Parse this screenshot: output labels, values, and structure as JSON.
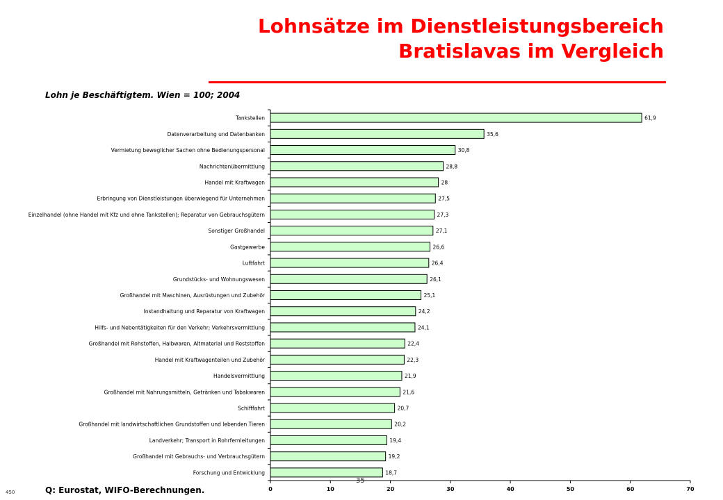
{
  "slide": {
    "title_line1": "Lohnsätze im Dienstleistungsbereich",
    "title_line2": "Bratislavas im Vergleich",
    "subtitle": "Lohn je Beschäftigtem. Wien = 100; 2004",
    "source": "Q: Eurostat, WIFO-Berechnungen.",
    "slide_number": "450",
    "page_number": "35"
  },
  "colors": {
    "title": "#ff0000",
    "bar_fill": "#ccffcc",
    "bar_stroke": "#000000"
  },
  "chart_data": {
    "type": "bar",
    "orientation": "horizontal",
    "title": "",
    "xlabel": "",
    "ylabel": "",
    "xlim": [
      0,
      70
    ],
    "x_ticks": [
      0,
      10,
      20,
      30,
      40,
      50,
      60,
      70
    ],
    "grid": false,
    "legend": "none",
    "categories": [
      "Tankstellen",
      "Datenverarbeitung und Datenbanken",
      "Vermietung beweglicher Sachen ohne Bedienungspersonal",
      "Nachrichtenübermittlung",
      "Handel mit Kraftwagen",
      "Erbringung von Dienstleistungen überwiegend für Unternehmen",
      "Einzelhandel (ohne Handel mit Kfz und ohne Tankstellen); Reparatur von Gebrauchsgütern",
      "Sonstiger Großhandel",
      "Gastgewerbe",
      "Luftfahrt",
      "Grundstücks- und Wohnungswesen",
      "Großhandel mit Maschinen, Ausrüstungen und Zubehör",
      "Instandhaltung und Reparatur von Kraftwagen",
      "Hilfs- und Nebentätigkeiten für den Verkehr; Verkehrsvermittlung",
      "Großhandel mit Rohstoffen, Halbwaren, Altmaterial und Reststoffen",
      "Handel mit Kraftwagenteilen und Zubehör",
      "Handelsvermittlung",
      "Großhandel mit Nahrungsmitteln, Getränken und Tabakwaren",
      "Schifffahrt",
      "Großhandel mit landwirtschaftlichen Grundstoffen und lebenden Tieren",
      "Landverkehr; Transport in Rohrfernleitungen",
      "Großhandel mit Gebrauchs- und Verbrauchsgütern",
      "Forschung und Entwicklung"
    ],
    "values": [
      61.9,
      35.6,
      30.8,
      28.8,
      28,
      27.5,
      27.3,
      27.1,
      26.6,
      26.4,
      26.1,
      25.1,
      24.2,
      24.1,
      22.4,
      22.3,
      21.9,
      21.6,
      20.7,
      20.2,
      19.4,
      19.2,
      18.7
    ],
    "value_labels": [
      "61,9",
      "35,6",
      "30,8",
      "28,8",
      "28",
      "27,5",
      "27,3",
      "27,1",
      "26,6",
      "26,4",
      "26,1",
      "25,1",
      "24,2",
      "24,1",
      "22,4",
      "22,3",
      "21,9",
      "21,6",
      "20,7",
      "20,2",
      "19,4",
      "19,2",
      "18,7"
    ]
  }
}
